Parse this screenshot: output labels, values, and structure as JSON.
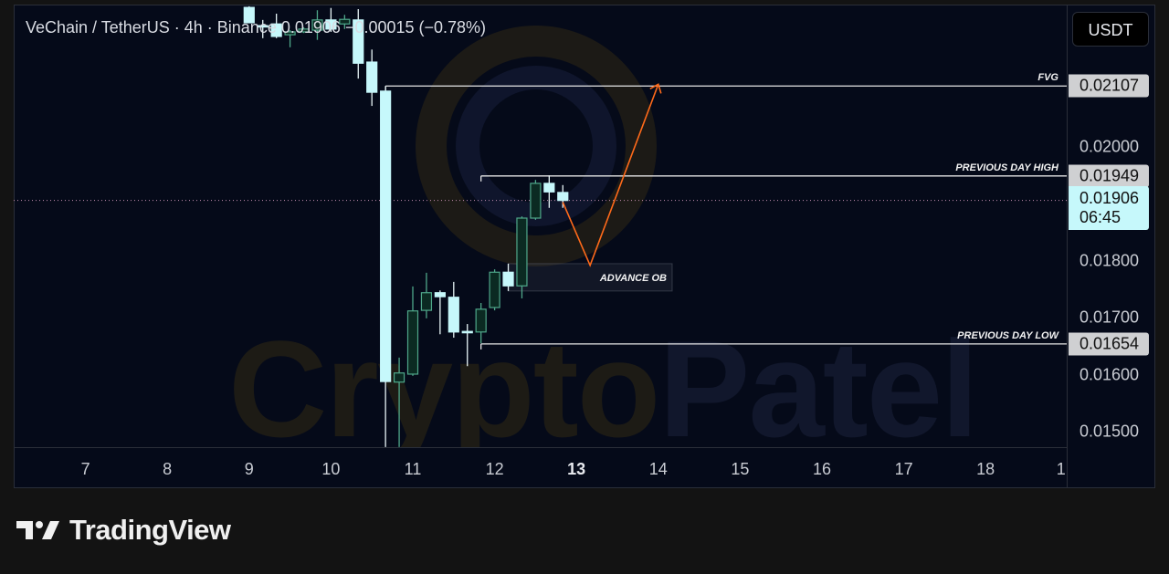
{
  "header": {
    "symbol": "VeChain / TetherUS · 4h · Binance",
    "last_price": "0.01906",
    "change": "−0.00015 (−0.78%)"
  },
  "currency_button": "USDT",
  "watermark": {
    "part1": "Crypto",
    "part2": "Patel"
  },
  "brand": "TradingView",
  "colors": {
    "background": "#050a19",
    "bull_body": "#0b2a22",
    "bull_border": "#4fa88a",
    "bear_body": "#c6f8fb",
    "projection": "#ff6a1a",
    "level_line": "#e6e6e6",
    "last_price_line": "#c48fb0"
  },
  "chart_data": {
    "type": "candlestick",
    "title": "VeChain / TetherUS · 4h · Binance",
    "xlabel": "",
    "ylabel": "",
    "ylim": [
      0.01473,
      0.0225
    ],
    "xlim_days": [
      6.35,
      19
    ],
    "price_ticks": [
      {
        "value": 0.02,
        "label": "0.02000"
      },
      {
        "value": 0.018,
        "label": "0.01800"
      },
      {
        "value": 0.017,
        "label": "0.01700"
      },
      {
        "value": 0.016,
        "label": "0.01600"
      },
      {
        "value": 0.015,
        "label": "0.01500"
      }
    ],
    "time_ticks": [
      {
        "day": 7,
        "label": "7"
      },
      {
        "day": 8,
        "label": "8"
      },
      {
        "day": 9,
        "label": "9"
      },
      {
        "day": 10,
        "label": "10"
      },
      {
        "day": 11,
        "label": "11"
      },
      {
        "day": 12,
        "label": "12"
      },
      {
        "day": 13,
        "label": "13",
        "current": true
      },
      {
        "day": 14,
        "label": "14"
      },
      {
        "day": 15,
        "label": "15"
      },
      {
        "day": 16,
        "label": "16"
      },
      {
        "day": 17,
        "label": "17"
      },
      {
        "day": 18,
        "label": "18"
      },
      {
        "day": 19,
        "label": "1"
      }
    ],
    "candles": [
      {
        "day": 9,
        "hour": 0,
        "o": 0.02245,
        "h": 0.02247,
        "l": 0.02218,
        "c": 0.02218
      },
      {
        "day": 9,
        "hour": 4,
        "o": 0.02213,
        "h": 0.02223,
        "l": 0.02191,
        "c": 0.02212
      },
      {
        "day": 9,
        "hour": 8,
        "o": 0.02216,
        "h": 0.02234,
        "l": 0.02191,
        "c": 0.02194
      },
      {
        "day": 9,
        "hour": 12,
        "o": 0.02197,
        "h": 0.02205,
        "l": 0.02175,
        "c": 0.02202
      },
      {
        "day": 9,
        "hour": 16,
        "o": 0.02202,
        "h": 0.0221,
        "l": 0.022,
        "c": 0.02207
      },
      {
        "day": 9,
        "hour": 20,
        "o": 0.02205,
        "h": 0.0224,
        "l": 0.02188,
        "c": 0.02223
      },
      {
        "day": 10,
        "hour": 0,
        "o": 0.02223,
        "h": 0.02244,
        "l": 0.02202,
        "c": 0.02207
      },
      {
        "day": 10,
        "hour": 4,
        "o": 0.02216,
        "h": 0.02232,
        "l": 0.02207,
        "c": 0.02224
      },
      {
        "day": 10,
        "hour": 8,
        "o": 0.02223,
        "h": 0.02242,
        "l": 0.0212,
        "c": 0.02147
      },
      {
        "day": 10,
        "hour": 12,
        "o": 0.02149,
        "h": 0.02171,
        "l": 0.02072,
        "c": 0.02096
      },
      {
        "day": 10,
        "hour": 16,
        "o": 0.02098,
        "h": 0.02107,
        "l": 0.01473,
        "c": 0.01588
      },
      {
        "day": 10,
        "hour": 20,
        "o": 0.01587,
        "h": 0.0163,
        "l": 0.01473,
        "c": 0.01603
      },
      {
        "day": 11,
        "hour": 0,
        "o": 0.01601,
        "h": 0.01755,
        "l": 0.01598,
        "c": 0.01712
      },
      {
        "day": 11,
        "hour": 4,
        "o": 0.01713,
        "h": 0.01779,
        "l": 0.01699,
        "c": 0.01744
      },
      {
        "day": 11,
        "hour": 8,
        "o": 0.01744,
        "h": 0.01748,
        "l": 0.01671,
        "c": 0.01737
      },
      {
        "day": 11,
        "hour": 12,
        "o": 0.01736,
        "h": 0.01763,
        "l": 0.01665,
        "c": 0.01675
      },
      {
        "day": 11,
        "hour": 16,
        "o": 0.01676,
        "h": 0.01689,
        "l": 0.01615,
        "c": 0.01676
      },
      {
        "day": 11,
        "hour": 20,
        "o": 0.01675,
        "h": 0.01726,
        "l": 0.01655,
        "c": 0.01715
      },
      {
        "day": 12,
        "hour": 0,
        "o": 0.01718,
        "h": 0.01785,
        "l": 0.01713,
        "c": 0.0178
      },
      {
        "day": 12,
        "hour": 4,
        "o": 0.0178,
        "h": 0.01795,
        "l": 0.01747,
        "c": 0.01756
      },
      {
        "day": 12,
        "hour": 8,
        "o": 0.01756,
        "h": 0.01878,
        "l": 0.01734,
        "c": 0.01875
      },
      {
        "day": 12,
        "hour": 12,
        "o": 0.01875,
        "h": 0.01942,
        "l": 0.01872,
        "c": 0.01936
      },
      {
        "day": 12,
        "hour": 16,
        "o": 0.01936,
        "h": 0.0195,
        "l": 0.01893,
        "c": 0.01921
      },
      {
        "day": 12,
        "hour": 20,
        "o": 0.0192,
        "h": 0.01933,
        "l": 0.01893,
        "c": 0.01906
      }
    ],
    "levels": [
      {
        "name": "fvg",
        "label": "FVG",
        "price": 0.02107,
        "tag": "0.02107",
        "from_day": 10,
        "from_hour": 16
      },
      {
        "name": "previous-day-high",
        "label": "PREVIOUS DAY HIGH",
        "price": 0.01949,
        "tag": "0.01949",
        "from_day": 11,
        "from_hour": 20
      },
      {
        "name": "previous-day-low",
        "label": "PREVIOUS DAY LOW",
        "price": 0.01654,
        "tag": "0.01654",
        "from_day": 11,
        "from_hour": 20
      }
    ],
    "last_price": {
      "price": 0.01906,
      "label": "0.01906",
      "countdown": "06:45"
    },
    "zone": {
      "label": "ADVANCE OB",
      "top": 0.01795,
      "bottom": 0.01747,
      "from_day": 12,
      "from_hour": 4,
      "to_day": 14,
      "to_hour": 4
    },
    "projection": [
      {
        "day": 12,
        "hour": 20,
        "price": 0.01903
      },
      {
        "day": 13,
        "hour": 4,
        "price": 0.01792
      },
      {
        "day": 14,
        "hour": 0,
        "price": 0.0211
      }
    ]
  }
}
